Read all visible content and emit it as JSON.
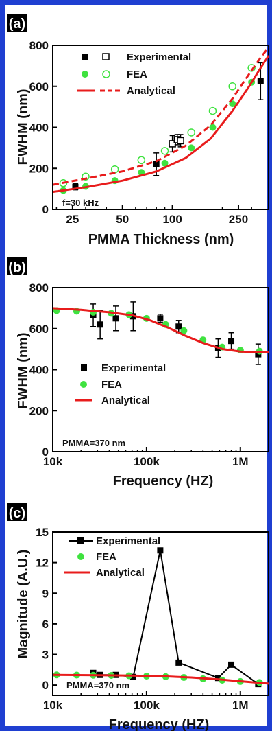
{
  "colors": {
    "border": "#1f3fd1",
    "experimental": "#000000",
    "fea": "#3fe23f",
    "analytical": "#e81c1c"
  },
  "chart_data": [
    {
      "type": "scatter",
      "panel_label": "(a)",
      "xlabel": "PMMA Thickness (nm)",
      "ylabel": "FWHM (nm)",
      "xscale": "log",
      "xlim": [
        19,
        380
      ],
      "ylim": [
        0,
        800
      ],
      "xticks": [
        25,
        50,
        100,
        250
      ],
      "yticks": [
        0,
        200,
        400,
        600,
        800
      ],
      "grid": false,
      "legend_placement": "top-left",
      "legend": [
        "Experimental",
        "FEA",
        "Analytical"
      ],
      "annotation": "f=30 kHz",
      "series": [
        {
          "name": "Experimental",
          "marker": "square-filled",
          "x": [
            26,
            80,
            340
          ],
          "y": [
            110,
            220,
            625
          ],
          "err": [
            15,
            55,
            90
          ]
        },
        {
          "name": "Experimental",
          "marker": "square-open",
          "x": [
            100,
            107,
            112
          ],
          "y": [
            320,
            340,
            335
          ],
          "err": [
            40,
            25,
            30
          ]
        },
        {
          "name": "FEA",
          "marker": "circle-filled",
          "x": [
            22,
            30,
            45,
            65,
            90,
            130,
            175,
            230,
            300
          ],
          "y": [
            92,
            112,
            140,
            180,
            225,
            300,
            400,
            515,
            620
          ]
        },
        {
          "name": "FEA",
          "marker": "circle-open",
          "x": [
            22,
            30,
            45,
            65,
            90,
            130,
            175,
            230,
            300
          ],
          "y": [
            128,
            160,
            195,
            240,
            285,
            375,
            480,
            600,
            690
          ]
        },
        {
          "name": "Analytical",
          "style": "solid",
          "x": [
            19,
            30,
            50,
            80,
            120,
            170,
            230,
            290,
            340,
            380
          ],
          "y": [
            85,
            108,
            140,
            185,
            250,
            345,
            480,
            600,
            690,
            750
          ]
        },
        {
          "name": "Analytical",
          "style": "dashed",
          "x": [
            19,
            30,
            50,
            80,
            120,
            170,
            230,
            290,
            340,
            380
          ],
          "y": [
            120,
            150,
            185,
            235,
            310,
            410,
            540,
            660,
            740,
            790
          ]
        }
      ]
    },
    {
      "type": "scatter",
      "panel_label": "(b)",
      "xlabel": "Frequency (HZ)",
      "ylabel": "FWHM (nm)",
      "xscale": "log",
      "xlim": [
        10000,
        2000000
      ],
      "ylim": [
        0,
        800
      ],
      "xticks": [
        10000,
        100000,
        1000000
      ],
      "xtick_labels": [
        "10k",
        "100k",
        "1M"
      ],
      "yticks": [
        0,
        200,
        400,
        600,
        800
      ],
      "grid": false,
      "legend_placement": "bottom-left",
      "legend": [
        "Experimental",
        "FEA",
        "Analytical"
      ],
      "annotation": "PMMA=370 nm",
      "series": [
        {
          "name": "Experimental",
          "marker": "square-filled",
          "x": [
            27000,
            32000,
            47000,
            72000,
            140000,
            220000,
            580000,
            800000,
            1550000
          ],
          "y": [
            665,
            620,
            650,
            660,
            650,
            610,
            505,
            540,
            475
          ],
          "err": [
            55,
            70,
            60,
            70,
            20,
            30,
            45,
            40,
            50
          ]
        },
        {
          "name": "FEA",
          "marker": "circle-filled",
          "x": [
            11000,
            18000,
            27000,
            42000,
            65000,
            100000,
            160000,
            250000,
            400000,
            640000,
            1000000,
            1600000
          ],
          "y": [
            688,
            685,
            680,
            675,
            668,
            650,
            620,
            590,
            545,
            510,
            495,
            490
          ]
        },
        {
          "name": "Analytical",
          "style": "solid",
          "x": [
            10000,
            20000,
            40000,
            70000,
            110000,
            170000,
            260000,
            400000,
            650000,
            1000000,
            1500000,
            2000000
          ],
          "y": [
            700,
            692,
            680,
            665,
            640,
            605,
            565,
            530,
            500,
            488,
            485,
            485
          ]
        }
      ]
    },
    {
      "type": "line",
      "panel_label": "(c)",
      "xlabel": "Frequency (HZ)",
      "ylabel": "Magnitude (A.U.)",
      "xscale": "log",
      "xlim": [
        10000,
        2000000
      ],
      "ylim": [
        -1,
        15
      ],
      "xticks": [
        10000,
        100000,
        1000000
      ],
      "xtick_labels": [
        "10k",
        "100k",
        "1M"
      ],
      "yticks": [
        0,
        3,
        6,
        9,
        12,
        15
      ],
      "grid": false,
      "legend_placement": "top-left",
      "legend": [
        "Experimental",
        "FEA",
        "Analytical"
      ],
      "annotation": "PMMA=370 nm",
      "series": [
        {
          "name": "Experimental",
          "marker": "square-filled",
          "x": [
            27000,
            32000,
            47000,
            72000,
            140000,
            220000,
            580000,
            800000,
            1550000
          ],
          "y": [
            1.2,
            1.0,
            1.0,
            0.8,
            13.2,
            2.2,
            0.7,
            2.0,
            0.1
          ]
        },
        {
          "name": "FEA",
          "marker": "circle-filled",
          "x": [
            11000,
            18000,
            27000,
            42000,
            65000,
            100000,
            160000,
            250000,
            400000,
            640000,
            1000000,
            1600000
          ],
          "y": [
            1.0,
            0.98,
            0.97,
            0.95,
            0.92,
            0.88,
            0.83,
            0.75,
            0.62,
            0.48,
            0.35,
            0.25
          ]
        },
        {
          "name": "Analytical",
          "style": "solid",
          "x": [
            10000,
            30000,
            70000,
            150000,
            300000,
            600000,
            1000000,
            2000000
          ],
          "y": [
            1.0,
            0.97,
            0.93,
            0.86,
            0.75,
            0.55,
            0.38,
            0.15
          ]
        }
      ]
    }
  ]
}
